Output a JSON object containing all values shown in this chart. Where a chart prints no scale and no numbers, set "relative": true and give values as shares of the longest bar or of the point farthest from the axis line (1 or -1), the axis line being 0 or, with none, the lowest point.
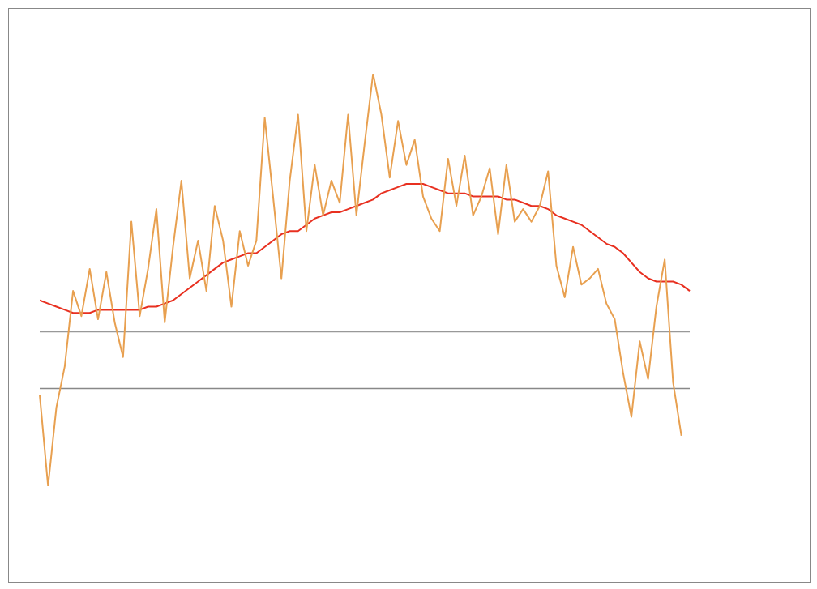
{
  "chart_data": {
    "type": "line",
    "relative": true,
    "categories": [
      null,
      null,
      null,
      null,
      null,
      null,
      null,
      null,
      null,
      null,
      null,
      null,
      null,
      null,
      null,
      null,
      null,
      null,
      null,
      null,
      null,
      null,
      null,
      null,
      null,
      null,
      null,
      null,
      null,
      null,
      null,
      null,
      null,
      null,
      null,
      null,
      null,
      null,
      null,
      null,
      null,
      null,
      null,
      null,
      null,
      null,
      null,
      null,
      null,
      null,
      null,
      null,
      null,
      null,
      null,
      null,
      null,
      null,
      null,
      null,
      null,
      null,
      null,
      null,
      null,
      null,
      null,
      null,
      null,
      null,
      null,
      null,
      null,
      null,
      null,
      null,
      null,
      null,
      null
    ],
    "series": [
      {
        "color": "#e8a050",
        "values": [
          -0.02,
          -0.31,
          -0.06,
          0.07,
          0.31,
          0.23,
          0.38,
          0.22,
          0.37,
          0.21,
          0.1,
          0.53,
          0.23,
          0.38,
          0.57,
          0.21,
          0.45,
          0.66,
          0.35,
          0.47,
          0.31,
          0.58,
          0.47,
          0.26,
          0.5,
          0.39,
          0.47,
          0.86,
          0.61,
          0.35,
          0.66,
          0.87,
          0.5,
          0.71,
          0.55,
          0.66,
          0.59,
          0.87,
          0.55,
          0.78,
          1.0,
          0.87,
          0.67,
          0.85,
          0.71,
          0.79,
          0.61,
          0.54,
          0.5,
          0.73,
          0.58,
          0.74,
          0.55,
          0.61,
          0.7,
          0.49,
          0.71,
          0.53,
          0.57,
          0.53,
          0.58,
          0.69,
          0.39,
          0.29,
          0.45,
          0.33,
          0.35,
          0.38,
          0.27,
          0.22,
          0.05,
          -0.09,
          0.15,
          0.03,
          0.26,
          0.41,
          0.02,
          -0.15,
          null
        ]
      },
      {
        "color": "#e83020",
        "values": [
          0.28,
          0.27,
          0.26,
          0.25,
          0.24,
          0.24,
          0.24,
          0.25,
          0.25,
          0.25,
          0.25,
          0.25,
          0.25,
          0.26,
          0.26,
          0.27,
          0.28,
          0.3,
          0.32,
          0.34,
          0.36,
          0.38,
          0.4,
          0.41,
          0.42,
          0.43,
          0.43,
          0.45,
          0.47,
          0.49,
          0.5,
          0.5,
          0.52,
          0.54,
          0.55,
          0.56,
          0.56,
          0.57,
          0.58,
          0.59,
          0.6,
          0.62,
          0.63,
          0.64,
          0.65,
          0.65,
          0.65,
          0.64,
          0.63,
          0.62,
          0.62,
          0.62,
          0.61,
          0.61,
          0.61,
          0.61,
          0.6,
          0.6,
          0.59,
          0.58,
          0.58,
          0.57,
          0.55,
          0.54,
          0.53,
          0.52,
          0.5,
          0.48,
          0.46,
          0.45,
          0.43,
          0.4,
          0.37,
          0.35,
          0.34,
          0.34,
          0.34,
          0.33,
          0.31
        ]
      }
    ],
    "ref_lines": [
      {
        "axis": "y",
        "value": 0.18,
        "color": "#999999"
      }
    ]
  }
}
